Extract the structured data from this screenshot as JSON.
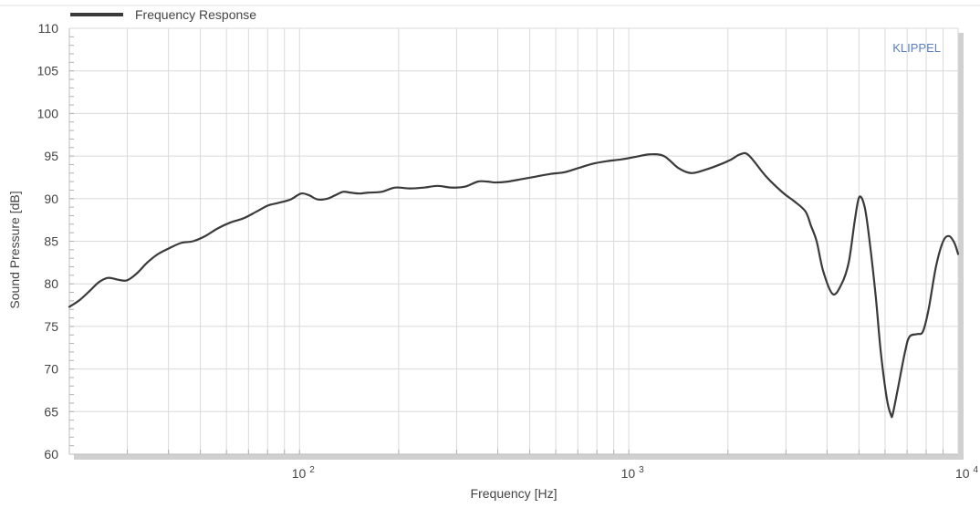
{
  "chart_data": {
    "type": "line",
    "title": "",
    "watermark": "KLIPPEL",
    "xlabel": "Frequency  [Hz]",
    "ylabel": "Sound Pressure  [dB]",
    "xscale": "log",
    "xlim": [
      20,
      10000
    ],
    "ylim": [
      60,
      110
    ],
    "grid": true,
    "legend_position": "top-left",
    "ytick_labels": [
      "60",
      "65",
      "70",
      "75",
      "80",
      "85",
      "90",
      "95",
      "100",
      "105",
      "110"
    ],
    "xtick_labels": [
      {
        "base": "10",
        "exp": "2",
        "value": 100
      },
      {
        "base": "10",
        "exp": "3",
        "value": 1000
      },
      {
        "base": "10",
        "exp": "4",
        "value": 10000
      }
    ],
    "colors": {
      "line": "#3a3a3a",
      "grid": "#d9d9d9",
      "watermark": "#5b7fc0",
      "shadow": "#d0d0d0"
    },
    "series": [
      {
        "name": "Frequency Response",
        "x": [
          20,
          21.5,
          23.1,
          24.6,
          26.2,
          28,
          29.9,
          32,
          34.5,
          37.2,
          40.3,
          43.7,
          47.5,
          51.7,
          56.4,
          61.7,
          67.7,
          74.2,
          80.3,
          86.3,
          93.9,
          101.1,
          106.9,
          113.5,
          121.6,
          128.4,
          135.6,
          143.2,
          152,
          161.2,
          177.4,
          195.1,
          215.7,
          238.6,
          262.7,
          288.9,
          317.7,
          347.9,
          372.8,
          392.6,
          428.6,
          474.5,
          523.7,
          578.6,
          638.4,
          704.2,
          776.7,
          858.4,
          947.2,
          1046.8,
          1157.4,
          1278.8,
          1413.3,
          1545.5,
          1709.6,
          1890,
          2047.3,
          2179.9,
          2312,
          2612.1,
          2936.6,
          3178.2,
          3438.9,
          3575.8,
          3719,
          3892.6,
          4159.7,
          4417.4,
          4653.4,
          4858.3,
          5012.4,
          5204.5,
          5385.5,
          5622.8,
          5823.5,
          6076.3,
          6253.9,
          6331.2,
          6548.3,
          6898.5,
          7120.7,
          7509.6,
          7817.4,
          8136.1,
          8564.7,
          9009.3,
          9396.6,
          9744.9,
          10000
        ],
        "y": [
          77.3,
          78.1,
          79.2,
          80.2,
          80.7,
          80.5,
          80.4,
          81.2,
          82.5,
          83.5,
          84.2,
          84.8,
          85.0,
          85.6,
          86.5,
          87.2,
          87.7,
          88.5,
          89.2,
          89.5,
          89.9,
          90.6,
          90.4,
          89.9,
          90.0,
          90.4,
          90.8,
          90.7,
          90.6,
          90.7,
          90.8,
          91.3,
          91.2,
          91.3,
          91.5,
          91.3,
          91.4,
          92.0,
          92.0,
          91.9,
          92.0,
          92.3,
          92.6,
          92.9,
          93.1,
          93.6,
          94.1,
          94.4,
          94.6,
          94.9,
          95.2,
          95.0,
          93.6,
          93.0,
          93.4,
          94.0,
          94.6,
          95.2,
          95.1,
          92.6,
          90.7,
          89.7,
          88.5,
          86.8,
          85.0,
          81.5,
          78.8,
          79.9,
          82.5,
          87.5,
          90.2,
          89.0,
          85.0,
          78.5,
          72.0,
          66.5,
          64.6,
          64.7,
          67.5,
          72.0,
          73.8,
          74.1,
          74.4,
          77.0,
          82.0,
          85.0,
          85.6,
          84.8,
          83.5
        ]
      }
    ]
  }
}
